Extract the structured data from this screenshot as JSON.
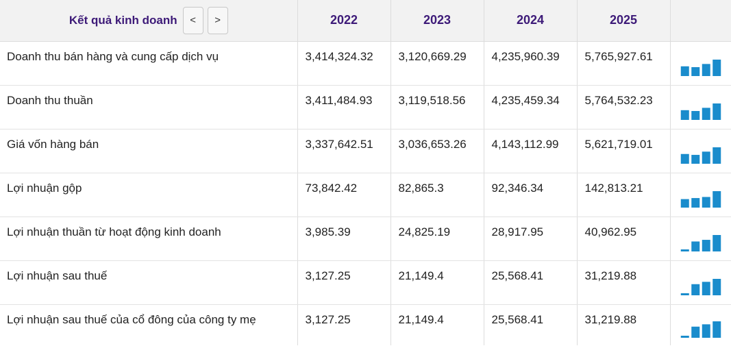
{
  "table": {
    "header": {
      "title": "Kết quả kinh doanh",
      "prev_label": "<",
      "next_label": ">",
      "years": [
        "2022",
        "2023",
        "2024",
        "2025"
      ]
    },
    "colors": {
      "header_text": "#3d1a78",
      "spark_bar": "#1a8ccc"
    },
    "rows": [
      {
        "label": "Doanh thu bán hàng và cung cấp dịch vụ",
        "display": [
          "3,414,324.32",
          "3,120,669.29",
          "4,235,960.39",
          "5,765,927.61"
        ],
        "values": [
          3414324.32,
          3120669.29,
          4235960.39,
          5765927.61
        ]
      },
      {
        "label": "Doanh thu thuần",
        "display": [
          "3,411,484.93",
          "3,119,518.56",
          "4,235,459.34",
          "5,764,532.23"
        ],
        "values": [
          3411484.93,
          3119518.56,
          4235459.34,
          5764532.23
        ]
      },
      {
        "label": "Giá vốn hàng bán",
        "display": [
          "3,337,642.51",
          "3,036,653.26",
          "4,143,112.99",
          "5,621,719.01"
        ],
        "values": [
          3337642.51,
          3036653.26,
          4143112.99,
          5621719.01
        ]
      },
      {
        "label": "Lợi nhuận gộp",
        "display": [
          "73,842.42",
          "82,865.3",
          "92,346.34",
          "142,813.21"
        ],
        "values": [
          73842.42,
          82865.3,
          92346.34,
          142813.21
        ]
      },
      {
        "label": "Lợi nhuận thuần từ hoạt động kinh doanh",
        "display": [
          "3,985.39",
          "24,825.19",
          "28,917.95",
          "40,962.95"
        ],
        "values": [
          3985.39,
          24825.19,
          28917.95,
          40962.95
        ]
      },
      {
        "label": "Lợi nhuận sau thuế",
        "display": [
          "3,127.25",
          "21,149.4",
          "25,568.41",
          "31,219.88"
        ],
        "values": [
          3127.25,
          21149.4,
          25568.41,
          31219.88
        ]
      },
      {
        "label": "Lợi nhuận sau thuế của cổ đông của công ty mẹ",
        "display": [
          "3,127.25",
          "21,149.4",
          "25,568.41",
          "31,219.88"
        ],
        "values": [
          3127.25,
          21149.4,
          25568.41,
          31219.88
        ]
      }
    ]
  }
}
